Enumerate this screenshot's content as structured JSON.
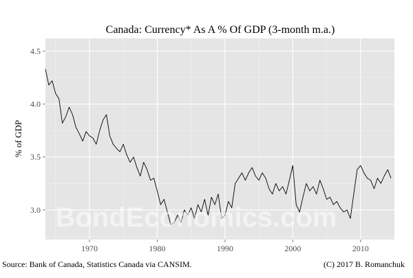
{
  "chart_data": {
    "type": "line",
    "title": "Canada: Currency* As A % Of GDP (3-month m.a.)",
    "xlabel": "",
    "ylabel": "% of GDP",
    "xlim": [
      1963.5,
      2015.0
    ],
    "ylim": [
      2.72,
      4.62
    ],
    "x_ticks": [
      1970,
      1980,
      1990,
      2000,
      2010
    ],
    "y_ticks": [
      3.0,
      3.5,
      4.0,
      4.5
    ],
    "y_tick_labels": [
      "3.0",
      "3.5",
      "4.0",
      "4.5"
    ],
    "grid": true,
    "series": [
      {
        "color": "#000000",
        "x": [
          1963.5,
          1964.0,
          1964.5,
          1965.0,
          1965.5,
          1966.0,
          1966.5,
          1967.0,
          1967.5,
          1968.0,
          1968.5,
          1969.0,
          1969.5,
          1970.0,
          1970.5,
          1971.0,
          1971.5,
          1972.0,
          1972.5,
          1973.0,
          1973.5,
          1974.0,
          1974.5,
          1975.0,
          1975.5,
          1976.0,
          1976.5,
          1977.0,
          1977.5,
          1978.0,
          1978.5,
          1979.0,
          1979.5,
          1980.0,
          1980.5,
          1981.0,
          1981.5,
          1982.0,
          1982.5,
          1983.0,
          1983.5,
          1984.0,
          1984.5,
          1985.0,
          1985.5,
          1986.0,
          1986.5,
          1987.0,
          1987.5,
          1988.0,
          1988.5,
          1989.0,
          1989.5,
          1990.0,
          1990.5,
          1991.0,
          1991.5,
          1992.0,
          1992.5,
          1993.0,
          1993.5,
          1994.0,
          1994.5,
          1995.0,
          1995.5,
          1996.0,
          1996.5,
          1997.0,
          1997.5,
          1998.0,
          1998.5,
          1999.0,
          1999.5,
          2000.0,
          2000.5,
          2001.0,
          2001.5,
          2002.0,
          2002.5,
          2003.0,
          2003.5,
          2004.0,
          2004.5,
          2005.0,
          2005.5,
          2006.0,
          2006.5,
          2007.0,
          2007.5,
          2008.0,
          2008.5,
          2009.0,
          2009.5,
          2010.0,
          2010.5,
          2011.0,
          2011.5,
          2012.0,
          2012.5,
          2013.0,
          2013.5,
          2014.0,
          2014.5
        ],
        "y": [
          4.33,
          4.18,
          4.22,
          4.1,
          4.05,
          3.82,
          3.88,
          3.97,
          3.9,
          3.78,
          3.72,
          3.65,
          3.74,
          3.7,
          3.68,
          3.62,
          3.75,
          3.85,
          3.9,
          3.7,
          3.62,
          3.58,
          3.55,
          3.62,
          3.52,
          3.45,
          3.5,
          3.4,
          3.32,
          3.45,
          3.38,
          3.28,
          3.3,
          3.18,
          3.05,
          3.1,
          2.98,
          2.86,
          2.88,
          2.95,
          2.88,
          3.0,
          2.95,
          3.02,
          2.92,
          3.05,
          2.98,
          3.1,
          2.95,
          3.12,
          3.05,
          3.15,
          2.92,
          2.95,
          3.08,
          3.02,
          3.25,
          3.3,
          3.35,
          3.28,
          3.35,
          3.4,
          3.32,
          3.28,
          3.35,
          3.3,
          3.2,
          3.15,
          3.25,
          3.18,
          3.22,
          3.15,
          3.28,
          3.42,
          3.05,
          2.98,
          3.12,
          3.25,
          3.18,
          3.22,
          3.15,
          3.28,
          3.2,
          3.1,
          3.12,
          3.05,
          3.08,
          3.02,
          2.98,
          3.0,
          2.92,
          3.15,
          3.38,
          3.42,
          3.35,
          3.3,
          3.28,
          3.2,
          3.3,
          3.25,
          3.32,
          3.38,
          3.3
        ]
      }
    ],
    "watermark": "BondEconomics.com",
    "annotations": {
      "source": "Source: Bank of Canada, Statistics Canada via CANSIM.",
      "copyright": "(C) 2017 B. Romanchuk"
    }
  }
}
